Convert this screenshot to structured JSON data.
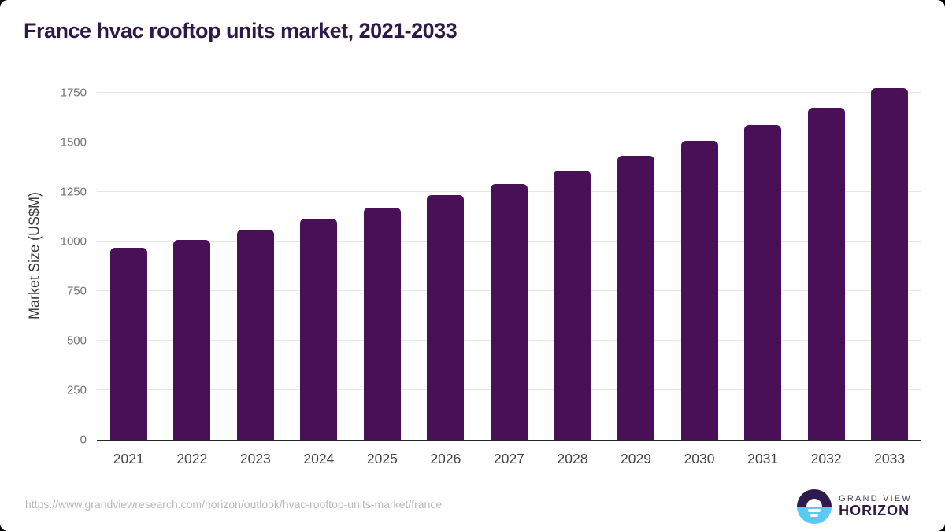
{
  "page": {
    "title": "France hvac rooftop units market, 2021-2033",
    "source_url": "https://www.grandviewresearch.com/horizon/outlook/hvac-rooftop-units-market/france",
    "logo": {
      "line1": "GRAND VIEW",
      "line2": "HORIZON"
    }
  },
  "colors": {
    "bar": "#491058",
    "title": "#2e1a47",
    "axis_line": "#262626",
    "gridline": "#e7e7e7",
    "y_tick_label": "#757575",
    "x_tick_label": "#444444",
    "url_text": "#b9b9b9",
    "logo_purple": "#2d1b4e",
    "logo_blue": "#5ec8f2"
  },
  "chart_data": {
    "type": "bar",
    "title": "France hvac rooftop units market, 2021-2033",
    "categories": [
      "2021",
      "2022",
      "2023",
      "2024",
      "2025",
      "2026",
      "2027",
      "2028",
      "2029",
      "2030",
      "2031",
      "2032",
      "2033"
    ],
    "values": [
      966,
      1008,
      1060,
      1113,
      1170,
      1234,
      1289,
      1356,
      1430,
      1507,
      1588,
      1674,
      1772
    ],
    "xlabel": "",
    "ylabel": "Market Size (US$M)",
    "yticks": [
      0,
      250,
      500,
      750,
      1000,
      1250,
      1500,
      1750
    ],
    "ylim": [
      0,
      1860
    ],
    "grid": true,
    "legend": false,
    "bar_color": "#491058"
  }
}
